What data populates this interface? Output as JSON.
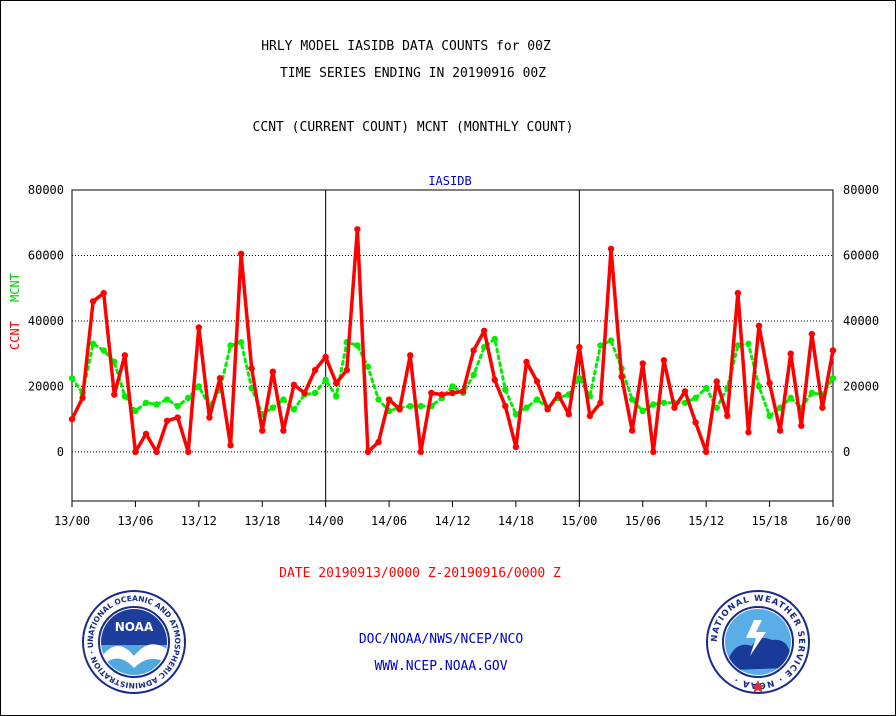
{
  "header": {
    "title_line1": "HRLY MODEL IASIDB DATA COUNTS for 00Z",
    "title_line2": "TIME SERIES ENDING IN 20190916 00Z",
    "subtitle": "CCNT (CURRENT COUNT) MCNT (MONTHLY COUNT)"
  },
  "footer": {
    "date_range": "DATE 20190913/0000 Z-20190916/0000 Z",
    "agency_path": "DOC/NOAA/NWS/NCEP/NCO",
    "website": "WWW.NCEP.NOAA.GOV"
  },
  "logos": {
    "noaa_text": "NOAA",
    "noaa_ring_text": "NATIONAL OCEANIC AND ATMOSPHERIC ADMINISTRATION · U.S. DEPARTMENT OF COMMERCE ·",
    "nws_ring_text": "NATIONAL WEATHER SERVICE · NOAA ·"
  },
  "chart_data": {
    "type": "line",
    "title": "IASIDB",
    "ylabel_left": "CCNT",
    "ylabel_right": "MCNT",
    "ylim": [
      -15000,
      80000
    ],
    "yticks": [
      0,
      20000,
      40000,
      60000,
      80000
    ],
    "ytick_labels": [
      "0",
      "20000",
      "40000",
      "60000",
      "80000"
    ],
    "xlim": [
      0,
      72
    ],
    "xticks": [
      0,
      6,
      12,
      18,
      24,
      30,
      36,
      42,
      48,
      54,
      60,
      66,
      72
    ],
    "xtick_labels": [
      "13/00",
      "13/06",
      "13/12",
      "13/18",
      "14/00",
      "14/06",
      "14/12",
      "14/18",
      "15/00",
      "15/06",
      "15/12",
      "15/18",
      "16/00"
    ],
    "day_dividers": [
      24,
      48
    ],
    "grid": true,
    "colors": {
      "ccnt": "#ff0000",
      "mcnt": "#00ee00",
      "ylabel_ccnt": "#ff0000",
      "ylabel_mcnt": "#00ee00",
      "title": "#0000cc",
      "date": "#ff0000",
      "footer": "#0000cc"
    },
    "series": [
      {
        "name": "CCNT",
        "x": [
          0,
          1,
          2,
          3,
          4,
          5,
          6,
          7,
          8,
          9,
          10,
          11,
          12,
          13,
          14,
          15,
          16,
          17,
          18,
          19,
          20,
          21,
          22,
          23,
          24,
          25,
          26,
          27,
          28,
          29,
          30,
          31,
          32,
          33,
          34,
          35,
          36,
          37,
          38,
          39,
          40,
          41,
          42,
          43,
          44,
          45,
          46,
          47,
          48,
          49,
          50,
          51,
          52,
          53,
          54,
          55,
          56,
          57,
          58,
          59,
          60,
          61,
          62,
          63,
          64,
          65,
          66,
          67,
          68,
          69,
          70,
          71,
          72
        ],
        "values": [
          10000,
          16500,
          46000,
          48500,
          17500,
          29500,
          0,
          5500,
          0,
          9500,
          10500,
          0,
          38000,
          10500,
          22500,
          2000,
          60500,
          25500,
          6500,
          24500,
          6500,
          20500,
          18000,
          25000,
          29000,
          21000,
          25000,
          68000,
          0,
          3000,
          16000,
          13000,
          29500,
          0,
          18000,
          17500,
          18000,
          18500,
          31000,
          37000,
          22000,
          14000,
          1500,
          27500,
          21500,
          13000,
          17500,
          11500,
          32000,
          11000,
          15000,
          62000,
          23000,
          6500,
          27000,
          0,
          28000,
          13500,
          18500,
          9000,
          0,
          21500,
          11000,
          48500,
          6000,
          38500,
          21000,
          6500,
          30000,
          8000,
          36000,
          13500,
          31000
        ]
      },
      {
        "name": "MCNT",
        "x": [
          0,
          1,
          2,
          3,
          4,
          5,
          6,
          7,
          8,
          9,
          10,
          11,
          12,
          13,
          14,
          15,
          16,
          17,
          18,
          19,
          20,
          21,
          22,
          23,
          24,
          25,
          26,
          27,
          28,
          29,
          30,
          31,
          32,
          33,
          34,
          35,
          36,
          37,
          38,
          39,
          40,
          41,
          42,
          43,
          44,
          45,
          46,
          47,
          48,
          49,
          50,
          51,
          52,
          53,
          54,
          55,
          56,
          57,
          58,
          59,
          60,
          61,
          62,
          63,
          64,
          65,
          66,
          67,
          68,
          69,
          70,
          71,
          72
        ],
        "values": [
          22500,
          18000,
          33000,
          31000,
          27500,
          17000,
          12500,
          15000,
          14500,
          16000,
          14000,
          16500,
          20000,
          14000,
          19000,
          32500,
          33500,
          19500,
          11500,
          13500,
          16000,
          13000,
          17500,
          18000,
          22000,
          17000,
          33500,
          32500,
          26000,
          16000,
          12500,
          13500,
          14000,
          14000,
          14000,
          16500,
          20000,
          18000,
          23500,
          32000,
          34500,
          19000,
          11500,
          13500,
          16000,
          13500,
          16500,
          17500,
          22500,
          17000,
          32500,
          34000,
          25500,
          16000,
          12500,
          14500,
          15000,
          15000,
          15000,
          16500,
          19500,
          13500,
          19500,
          32500,
          33000,
          20000,
          11000,
          13500,
          16500,
          13500,
          18000,
          17500,
          22500
        ]
      }
    ]
  }
}
